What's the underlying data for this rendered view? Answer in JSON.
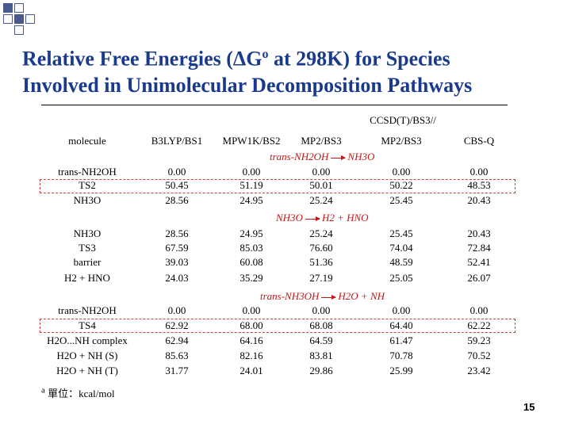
{
  "title": {
    "line1_pre": "Relative Free Energies (ΔG",
    "line1_sup": "o",
    "line1_post": " at 298K) for Species",
    "line2": "Involved in Unimolecular Decomposition Pathways"
  },
  "colors": {
    "title": "#1a3a8c",
    "section": "#c01818",
    "decoration": "#4a5a8a"
  },
  "header": {
    "super": "CCSD(T)/BS3//",
    "cols": [
      "molecule",
      "B3LYP/BS1",
      "MPW1K/BS2",
      "MP2/BS3",
      "MP2/BS3",
      "CBS-Q"
    ]
  },
  "sections": [
    {
      "from": "trans-NH2OH",
      "to": "NH3O"
    },
    {
      "from": "NH3O",
      "to": "H2 + HNO"
    },
    {
      "from": "trans-NH3OH",
      "to": "H2O + NH"
    }
  ],
  "rows": [
    [
      "trans-NH2OH",
      "0.00",
      "0.00",
      "0.00",
      "0.00",
      "0.00"
    ],
    [
      "TS2",
      "50.45",
      "51.19",
      "50.01",
      "50.22",
      "48.53"
    ],
    [
      "NH3O",
      "28.56",
      "24.95",
      "25.24",
      "25.45",
      "20.43"
    ],
    [
      "NH3O",
      "28.56",
      "24.95",
      "25.24",
      "25.45",
      "20.43"
    ],
    [
      "TS3",
      "67.59",
      "85.03",
      "76.60",
      "74.04",
      "72.84"
    ],
    [
      "barrier",
      "39.03",
      "60.08",
      "51.36",
      "48.59",
      "52.41"
    ],
    [
      "H2 + HNO",
      "24.03",
      "35.29",
      "27.19",
      "25.05",
      "26.07"
    ],
    [
      "trans-NH2OH",
      "0.00",
      "0.00",
      "0.00",
      "0.00",
      "0.00"
    ],
    [
      "TS4",
      "62.92",
      "68.00",
      "68.08",
      "64.40",
      "62.22"
    ],
    [
      "H2O...NH complex",
      "62.94",
      "64.16",
      "64.59",
      "61.47",
      "59.23"
    ],
    [
      "H2O + NH (S)",
      "85.63",
      "82.16",
      "83.81",
      "70.78",
      "70.52"
    ],
    [
      "H2O + NH (T)",
      "31.77",
      "24.01",
      "29.86",
      "25.99",
      "23.42"
    ]
  ],
  "footnote": {
    "sup": "a",
    "text": "單位：kcal/mol"
  },
  "page_number": "15"
}
